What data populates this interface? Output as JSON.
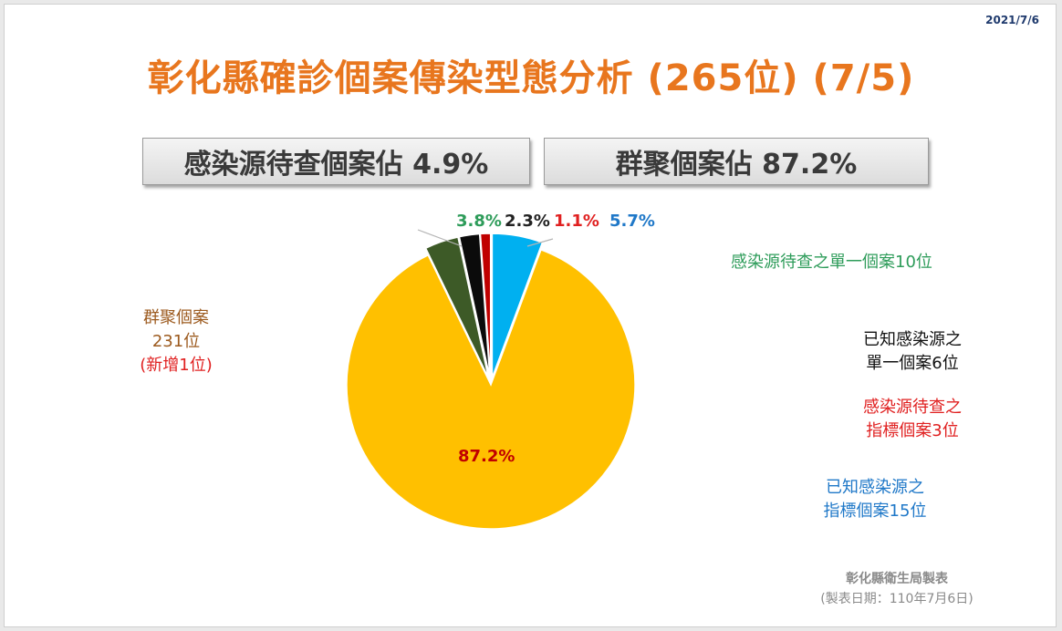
{
  "date": "2021/7/6",
  "title": "彰化縣確診個案傳染型態分析 (265位) (7/5)",
  "summary": {
    "unknown_source": "感染源待查個案佔 4.9%",
    "cluster": "群聚個案佔 87.2%"
  },
  "chart_data": {
    "type": "pie",
    "total": 265,
    "slices": [
      {
        "name": "群聚個案",
        "value": 231,
        "percent_label": "87.2%",
        "color": "#ffc000",
        "label_color": "#c00000"
      },
      {
        "name": "感染源待查之單一個案",
        "value": 10,
        "percent_label": "3.8%",
        "color": "#3d5a27",
        "label_color": "#2e9c5a"
      },
      {
        "name": "已知感染源之單一個案",
        "value": 6,
        "percent_label": "2.3%",
        "color": "#0b0b0b",
        "label_color": "#222222"
      },
      {
        "name": "感染源待查之指標個案",
        "value": 3,
        "percent_label": "1.1%",
        "color": "#c00000",
        "label_color": "#e02020"
      },
      {
        "name": "已知感染源之指標個案",
        "value": 15,
        "percent_label": "5.7%",
        "color": "#00b0f0",
        "label_color": "#1f78c8"
      }
    ]
  },
  "legend": {
    "cluster_line1": "群聚個案",
    "cluster_line2": "231位",
    "cluster_line3": "(新增1位)",
    "unknown_single": "感染源待查之單一個案10位",
    "known_single_line1": "已知感染源之",
    "known_single_line2": "單一個案6位",
    "unknown_index_line1": "感染源待查之",
    "unknown_index_line2": "指標個案3位",
    "known_index_line1": "已知感染源之",
    "known_index_line2": "指標個案15位"
  },
  "colors": {
    "title": "#e8761e",
    "cluster_label": "#9c5a1e",
    "new_case": "#e02020",
    "green_label": "#2e9c5a",
    "red_label": "#e02020",
    "blue_label": "#1f78c8"
  },
  "credit": {
    "line1": "彰化縣衛生局製表",
    "line2": "(製表日期：110年7月6日)"
  }
}
